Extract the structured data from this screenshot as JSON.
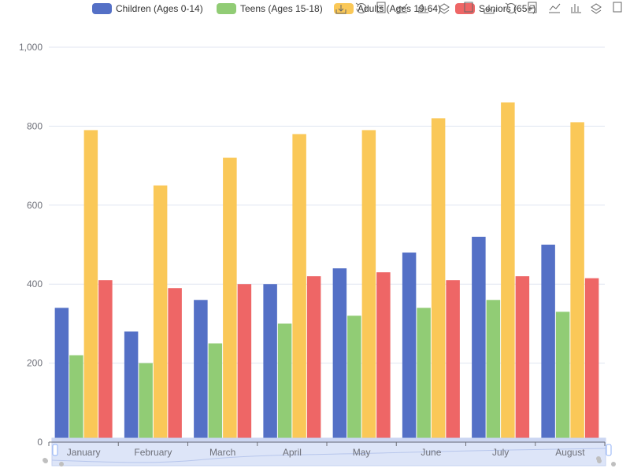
{
  "chart_data": {
    "type": "bar",
    "categories": [
      "January",
      "February",
      "March",
      "April",
      "May",
      "June",
      "July",
      "August"
    ],
    "series": [
      {
        "name": "Children (Ages 0-14)",
        "color": "#5470c6",
        "values": [
          340,
          280,
          360,
          400,
          440,
          480,
          520,
          500
        ]
      },
      {
        "name": "Teens (Ages 15-18)",
        "color": "#91cc75",
        "values": [
          220,
          200,
          250,
          300,
          320,
          340,
          360,
          330
        ]
      },
      {
        "name": "Adults (Ages 19-64)",
        "color": "#fac858",
        "values": [
          790,
          650,
          720,
          780,
          790,
          820,
          860,
          810
        ]
      },
      {
        "name": "Seniors (65+)",
        "color": "#ee6666",
        "values": [
          410,
          390,
          400,
          420,
          430,
          410,
          420,
          415
        ]
      }
    ],
    "ylim": [
      0,
      1000
    ],
    "yticks": [
      0,
      200,
      400,
      600,
      800,
      1000
    ],
    "ytick_labels": [
      "0",
      "200",
      "400",
      "600",
      "800",
      "1,000"
    ],
    "legend_position": "top",
    "grid": true,
    "toolbox": [
      "save-as-image-icon",
      "restore-icon",
      "data-view-icon",
      "line-chart-icon",
      "bar-chart-icon",
      "stack-icon",
      "tiled-icon",
      "rect-select-icon",
      "polygon-select-icon",
      "clear-select-icon",
      "zoom-icon",
      "zoom-reset-icon",
      "brush-icon",
      "fullscreen-icon"
    ],
    "data_zoom": {
      "start": 0,
      "end": 100
    }
  }
}
